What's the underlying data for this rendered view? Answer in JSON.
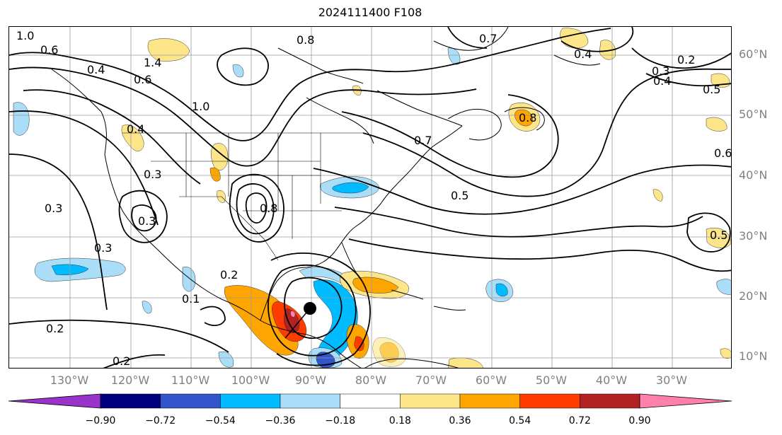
{
  "title": "2024111400 F108",
  "latitude_labels": [
    "60°N",
    "50°N",
    "40°N",
    "30°N",
    "20°N",
    "10°N"
  ],
  "longitude_labels": [
    "130°W",
    "120°W",
    "110°W",
    "100°W",
    "90°W",
    "80°W",
    "70°W",
    "60°W",
    "50°W",
    "40°W",
    "30°W"
  ],
  "contour_labels": [
    {
      "text": "1.0",
      "pos": "nw-top"
    },
    {
      "text": "0.8",
      "pos": "north"
    },
    {
      "text": "0.7",
      "pos": "north-atlantic"
    },
    {
      "text": "0.6",
      "pos": "nw"
    },
    {
      "text": "0.4",
      "pos": "nw-coast"
    },
    {
      "text": "1.4",
      "pos": "rockies"
    },
    {
      "text": "0.6",
      "pos": "west"
    },
    {
      "text": "1.0",
      "pos": "plains"
    },
    {
      "text": "0.4",
      "pos": "pacific-nw"
    },
    {
      "text": "0.3",
      "pos": "pacific"
    },
    {
      "text": "0.3",
      "pos": "california"
    },
    {
      "text": "0.3",
      "pos": "baja"
    },
    {
      "text": "0.2",
      "pos": "mexico"
    },
    {
      "text": "0.2",
      "pos": "east-pacific"
    },
    {
      "text": "0.2",
      "pos": "south-pacific"
    },
    {
      "text": "0.5",
      "pos": "atlantic"
    },
    {
      "text": "0.7",
      "pos": "new-england"
    },
    {
      "text": "0.8",
      "pos": "newfoundland"
    },
    {
      "text": "0.6",
      "pos": "east-atlantic"
    },
    {
      "text": "0.5",
      "pos": "mid-atlantic-east"
    },
    {
      "text": "0.5",
      "pos": "north-atlantic-east"
    },
    {
      "text": "0.4",
      "pos": "greenland-east"
    },
    {
      "text": "0.3",
      "pos": "greenland"
    },
    {
      "text": "0.4",
      "pos": "greenland-south"
    },
    {
      "text": "0.2",
      "pos": "iceland"
    },
    {
      "text": "0.8",
      "pos": "gulf"
    },
    {
      "text": "0.3",
      "pos": "texas"
    },
    {
      "text": "0.1",
      "pos": "sierra"
    }
  ],
  "colorbar": {
    "tick_labels": [
      "−0.90",
      "−0.72",
      "−0.54",
      "−0.36",
      "−0.18",
      "0.18",
      "0.36",
      "0.54",
      "0.72",
      "0.90"
    ],
    "colors": [
      "#9933cc",
      "#000080",
      "#3355cc",
      "#00bbff",
      "#aaddf7",
      "#ffffff",
      "#fde68a",
      "#ffa500",
      "#ff3b00",
      "#b22222",
      "#ff80aa"
    ]
  },
  "feature_colors": {
    "land_lines": "#000000",
    "grid": "#9a9a9a",
    "storm_marker": "#000000"
  }
}
